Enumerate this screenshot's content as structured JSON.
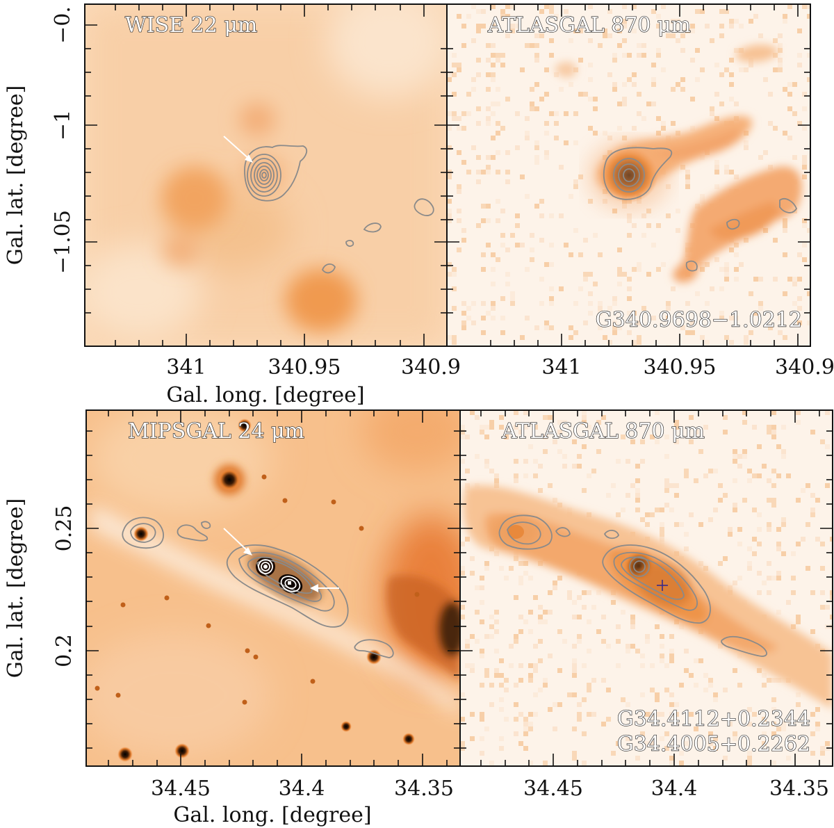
{
  "top_row": {
    "left_panel": {
      "label": "WISE 22 μm",
      "highlight": "#f6a462"
    },
    "right_panel": {
      "label": "ATLASGAL 870 μm",
      "source": "G340.9698−1.0212"
    },
    "y_ticks": [
      "−0.",
      "−1",
      "−1.05"
    ],
    "x_ticks": [
      "341",
      "340.95",
      "340.9"
    ],
    "x_title": "Gal. long. [degree]",
    "y_title": "Gal. lat. [degree]"
  },
  "bottom_row": {
    "left_panel": {
      "label": "MIPSGAL 24 μm"
    },
    "right_panel": {
      "label": "ATLASGAL 870 μm",
      "sources": [
        "G34.4112+0.2344",
        "G34.4005+0.2262"
      ]
    },
    "y_ticks": [
      "0.25",
      "0.2"
    ],
    "x_ticks": [
      "34.45",
      "34.4",
      "34.35"
    ],
    "x_title": "Gal. long. [degree]",
    "y_title": "Gal. lat. [degree]"
  },
  "colors": {
    "background": "#fde6d0",
    "emission": "#f08a3a",
    "peak": "#4a2a10"
  }
}
